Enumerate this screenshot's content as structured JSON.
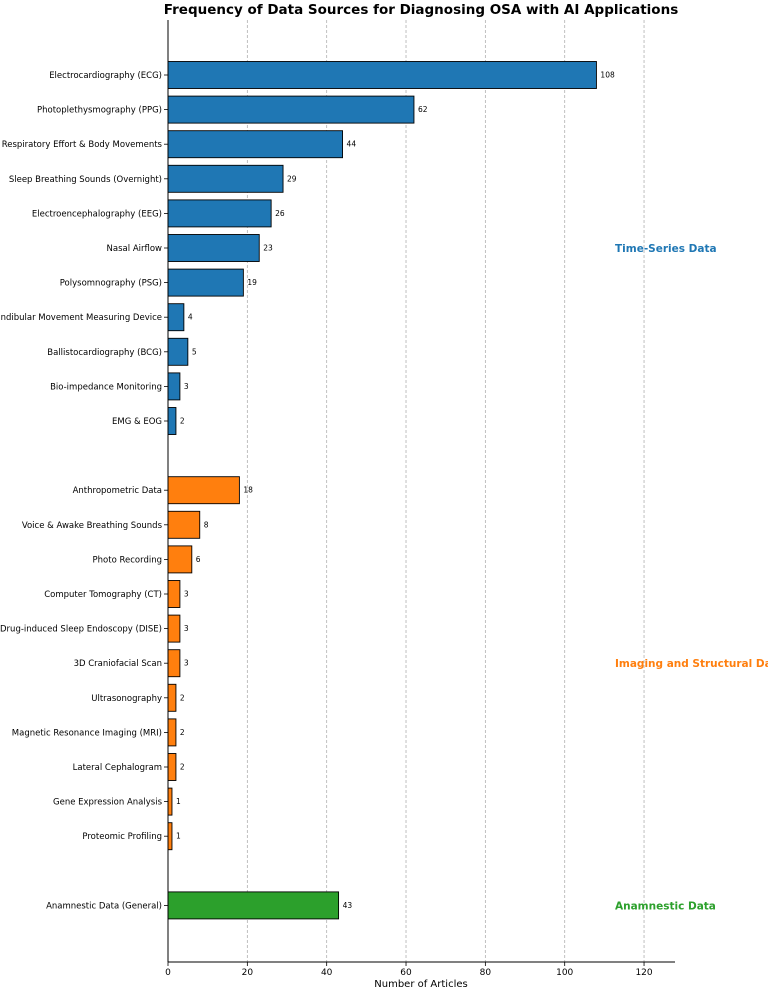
{
  "chart_data": {
    "type": "bar",
    "orientation": "horizontal",
    "title": "Frequency of Data Sources for Diagnosing OSA with AI Applications",
    "xlabel": "Number of Articles",
    "ylabel": "",
    "xlim": [
      0,
      128
    ],
    "xticks": [
      0,
      20,
      40,
      60,
      80,
      100,
      120
    ],
    "grid": "x-dashed",
    "groups": [
      {
        "name": "Time-Series Data",
        "color": "#1f77b4",
        "categories": [
          "Electrocardiography (ECG)",
          "Photoplethysmography (PPG)",
          "Respiratory Effort & Body Movements",
          "Sleep Breathing Sounds (Overnight)",
          "Electroencephalography (EEG)",
          "Nasal Airflow",
          "Polysomnography (PSG)",
          "Mandibular Movement Measuring Device",
          "Ballistocardiography (BCG)",
          "Bio-impedance Monitoring",
          "EMG & EOG"
        ],
        "values": [
          108,
          62,
          44,
          29,
          26,
          23,
          19,
          4,
          5,
          3,
          2
        ]
      },
      {
        "name": "Imaging and Structural Data",
        "color": "#ff7f0e",
        "categories": [
          "Anthropometric Data",
          "Voice & Awake Breathing Sounds",
          "Photo Recording",
          "Computer Tomography (CT)",
          "Drug-induced Sleep Endoscopy (DISE)",
          "3D Craniofacial Scan",
          "Ultrasonography",
          "Magnetic Resonance Imaging (MRI)",
          "Lateral Cephalogram",
          "Gene Expression Analysis",
          "Proteomic Profiling"
        ],
        "values": [
          18,
          8,
          6,
          3,
          3,
          3,
          2,
          2,
          2,
          1,
          1
        ]
      },
      {
        "name": "Anamnestic Data",
        "color": "#2ca02c",
        "categories": [
          "Anamnestic Data (General)"
        ],
        "values": [
          43
        ]
      }
    ]
  }
}
